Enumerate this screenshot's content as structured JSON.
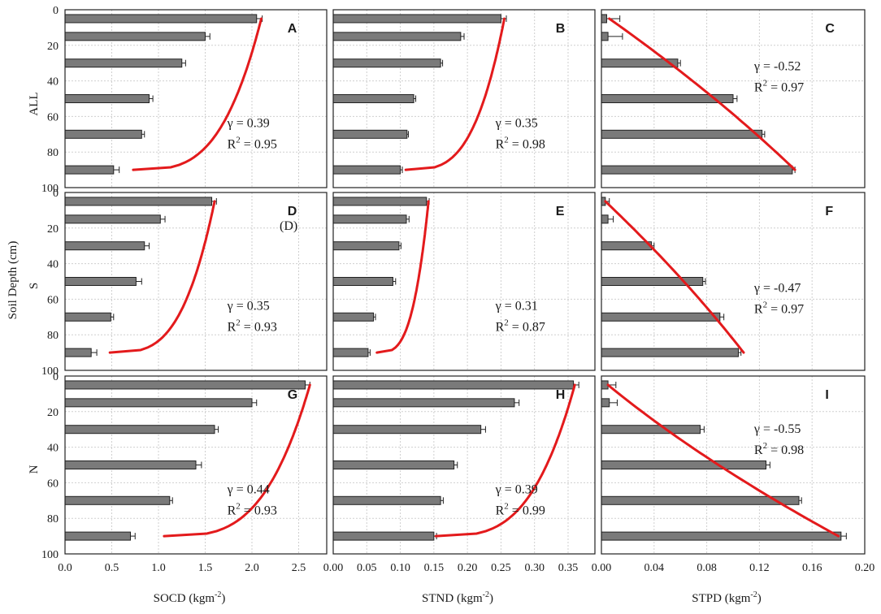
{
  "chart_data": {
    "type": "bar",
    "orientation": "horizontal",
    "ylabel": "Soil Depth (cm)",
    "depth_ticks": [
      "0",
      "20",
      "40",
      "60",
      "80",
      "100"
    ],
    "depth_range": [
      0,
      100
    ],
    "depths": [
      5,
      15,
      30,
      50,
      70,
      90
    ],
    "grid": true,
    "bar_color": "#7a7a7a",
    "curve_color": "#e31a1c",
    "rows": [
      "ALL",
      "S",
      "N"
    ],
    "columns": [
      {
        "xlabel_main": "SOCD (kgm",
        "xlabel_sup": "-2",
        "xlabel_end": ")",
        "xlim": [
          0,
          2.8
        ],
        "ticks": [
          "0.0",
          "0.5",
          "1.0",
          "1.5",
          "2.0",
          "2.5"
        ],
        "tick_values": [
          0,
          0.5,
          1.0,
          1.5,
          2.0,
          2.5
        ]
      },
      {
        "xlabel_main": "STND (kgm",
        "xlabel_sup": "-2",
        "xlabel_end": ")",
        "xlim": [
          0,
          0.39
        ],
        "ticks": [
          "0.00",
          "0.05",
          "0.10",
          "0.15",
          "0.20",
          "0.25",
          "0.30",
          "0.35"
        ],
        "tick_values": [
          0,
          0.05,
          0.1,
          0.15,
          0.2,
          0.25,
          0.3,
          0.35
        ]
      },
      {
        "xlabel_main": "STPD (kgm",
        "xlabel_sup": "-2",
        "xlabel_end": ")",
        "xlim": [
          0,
          0.2
        ],
        "ticks": [
          "0.00",
          "0.04",
          "0.08",
          "0.12",
          "0.16",
          "0.20"
        ],
        "tick_values": [
          0,
          0.04,
          0.08,
          0.12,
          0.16,
          0.2
        ]
      }
    ],
    "panels": [
      {
        "letter": "A",
        "row": 0,
        "col": 0,
        "values": [
          2.05,
          1.5,
          1.25,
          0.9,
          0.82,
          0.52
        ],
        "errors": [
          0.06,
          0.05,
          0.04,
          0.04,
          0.03,
          0.06
        ],
        "curve": {
          "kind": "power",
          "x0": 2.1,
          "x1": 0.73
        },
        "gamma": "γ = 0.39",
        "r2_main": "R",
        "r2_sup": "2",
        "r2_value": " = 0.95"
      },
      {
        "letter": "B",
        "row": 0,
        "col": 1,
        "values": [
          0.25,
          0.19,
          0.16,
          0.12,
          0.11,
          0.1
        ],
        "errors": [
          0.008,
          0.005,
          0.003,
          0.003,
          0.002,
          0.003
        ],
        "curve": {
          "kind": "power",
          "x0": 0.255,
          "x1": 0.108
        },
        "gamma": "γ = 0.35",
        "r2_main": "R",
        "r2_sup": "2",
        "r2_value": " = 0.98"
      },
      {
        "letter": "C",
        "row": 0,
        "col": 2,
        "values": [
          0.004,
          0.005,
          0.058,
          0.1,
          0.122,
          0.145
        ],
        "errors": [
          0.01,
          0.011,
          0.002,
          0.003,
          0.002,
          0.002
        ],
        "curve": {
          "kind": "lin",
          "x0": 0.006,
          "x1": 0.147
        },
        "gamma": "γ = -0.52",
        "r2_main": "R",
        "r2_sup": "2",
        "r2_value": " = 0.97"
      },
      {
        "letter": "D",
        "row": 1,
        "col": 0,
        "values": [
          1.57,
          1.02,
          0.85,
          0.76,
          0.49,
          0.28
        ],
        "errors": [
          0.05,
          0.05,
          0.05,
          0.06,
          0.03,
          0.06
        ],
        "curve": {
          "kind": "power",
          "x0": 1.6,
          "x1": 0.48
        },
        "gamma": "γ = 0.35",
        "r2_main": "R",
        "r2_sup": "2",
        "r2_value": " = 0.93",
        "extra_label": "(D)"
      },
      {
        "letter": "E",
        "row": 1,
        "col": 1,
        "values": [
          0.139,
          0.109,
          0.098,
          0.089,
          0.06,
          0.052
        ],
        "errors": [
          0.004,
          0.004,
          0.003,
          0.004,
          0.003,
          0.003
        ],
        "curve": {
          "kind": "power",
          "x0": 0.142,
          "x1": 0.065
        },
        "gamma": "γ = 0.31",
        "r2_main": "R",
        "r2_sup": "2",
        "r2_value": " = 0.87"
      },
      {
        "letter": "F",
        "row": 1,
        "col": 2,
        "values": [
          0.003,
          0.005,
          0.038,
          0.077,
          0.09,
          0.104
        ],
        "errors": [
          0.003,
          0.004,
          0.002,
          0.002,
          0.003,
          0.002
        ],
        "curve": {
          "kind": "lin",
          "x0": 0.003,
          "x1": 0.108
        },
        "gamma": "γ = -0.47",
        "r2_main": "R",
        "r2_sup": "2",
        "r2_value": " = 0.97"
      },
      {
        "letter": "G",
        "row": 2,
        "col": 0,
        "values": [
          2.57,
          2.0,
          1.6,
          1.4,
          1.12,
          0.7
        ],
        "errors": [
          0.05,
          0.05,
          0.04,
          0.06,
          0.03,
          0.05
        ],
        "curve": {
          "kind": "power",
          "x0": 2.62,
          "x1": 1.06
        },
        "gamma": "γ = 0.44",
        "r2_main": "R",
        "r2_sup": "2",
        "r2_value": " = 0.93"
      },
      {
        "letter": "H",
        "row": 2,
        "col": 1,
        "values": [
          0.358,
          0.27,
          0.22,
          0.18,
          0.16,
          0.15
        ],
        "errors": [
          0.008,
          0.007,
          0.007,
          0.005,
          0.004,
          0.004
        ],
        "curve": {
          "kind": "power",
          "x0": 0.36,
          "x1": 0.153
        },
        "gamma": "γ = 0.39",
        "r2_main": "R",
        "r2_sup": "2",
        "r2_value": " = 0.99"
      },
      {
        "letter": "I",
        "row": 2,
        "col": 2,
        "values": [
          0.005,
          0.006,
          0.075,
          0.125,
          0.15,
          0.182
        ],
        "errors": [
          0.006,
          0.006,
          0.003,
          0.003,
          0.002,
          0.004
        ],
        "curve": {
          "kind": "cubic",
          "x0": 0.005,
          "x1": 0.18
        },
        "gamma": "γ = -0.55",
        "r2_main": "R",
        "r2_sup": "2",
        "r2_value": " = 0.98"
      }
    ]
  }
}
